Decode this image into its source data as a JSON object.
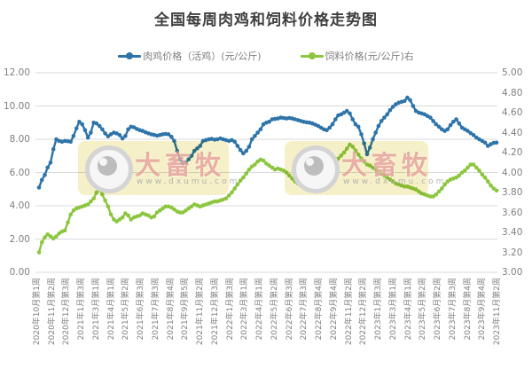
{
  "title": "全国每周肉鸡和饲料价格走势图",
  "legend": [
    {
      "label": "肉鸡价格（活鸡）(元/公斤)",
      "color": "#2e74a8"
    },
    {
      "label": "饲料价格(元/公斤)右",
      "color": "#8cc63f"
    }
  ],
  "watermark": {
    "brand": "大畜牧",
    "url": "www.dxumu.com"
  },
  "colors": {
    "broiler_line": "#2e74a8",
    "feed_line": "#8cc63f",
    "gridline": "#d9d9d9",
    "axis_text": "#7f7f7f",
    "title_text": "#404040",
    "watermark_bg": "#f5efc3"
  },
  "chart_data": {
    "type": "line",
    "title": "全国每周肉鸡和饲料价格走势图",
    "grid": true,
    "legend_position": "top",
    "left_axis": {
      "range": [
        0,
        12
      ],
      "ticks": [
        "12.00",
        "10.00",
        "8.00",
        "6.00",
        "4.00",
        "2.00",
        "0.00"
      ]
    },
    "right_axis": {
      "range": [
        3,
        5
      ],
      "ticks": [
        "5.00",
        "4.80",
        "4.60",
        "4.40",
        "4.20",
        "4.00",
        "3.80",
        "3.60",
        "3.40",
        "3.20",
        "3.00"
      ]
    },
    "x_tick_labels": [
      "2020年10月第1周",
      "2020年11月第2周",
      "2020年12月第3周",
      "2021年1月第3周",
      "2021年3月第1周",
      "2021年4月第1周",
      "2021年5月第2周",
      "2021年6月第3周",
      "2021年7月第3周",
      "2021年8月第4周",
      "2021年9月第5周",
      "2021年11月第2周",
      "2021年12月第3周",
      "2022年1月第3周",
      "2022年3月第1周",
      "2022年4月第1周",
      "2022年5月第2周",
      "2022年6月第3周",
      "2022年7月第3周",
      "2022年8月第4周",
      "2022年9月第4周",
      "2022年11月第2周",
      "2022年12月第2周",
      "2023年1月第3周",
      "2023年3月第1周",
      "2023年4月第1周",
      "2023年5月第2周",
      "2023年6月第2周",
      "2023年7月第3周",
      "2023年8月第4周",
      "2023年9月第4周",
      "2023年11月第2周"
    ],
    "series": [
      {
        "name": "肉鸡价格（活鸡）(元/公斤)",
        "axis": "left",
        "color": "#2e74a8",
        "values": [
          5.1,
          5.55,
          5.85,
          6.3,
          6.6,
          7.4,
          8.0,
          7.9,
          7.85,
          7.9,
          7.88,
          7.85,
          8.2,
          8.65,
          9.05,
          8.9,
          8.55,
          8.1,
          8.4,
          9.0,
          8.95,
          8.8,
          8.6,
          8.35,
          8.18,
          8.3,
          8.4,
          8.35,
          8.25,
          8.05,
          8.2,
          8.6,
          8.75,
          8.72,
          8.62,
          8.55,
          8.5,
          8.42,
          8.36,
          8.3,
          8.26,
          8.22,
          8.25,
          8.3,
          8.32,
          8.3,
          8.15,
          7.9,
          7.3,
          6.8,
          6.55,
          6.6,
          6.8,
          7.0,
          7.3,
          7.45,
          7.6,
          7.9,
          7.95,
          8.0,
          8.02,
          7.98,
          8.0,
          8.05,
          8.0,
          7.95,
          7.9,
          7.95,
          7.85,
          7.6,
          7.35,
          7.15,
          7.3,
          7.55,
          8.0,
          8.2,
          8.4,
          8.6,
          8.9,
          9.0,
          9.05,
          9.2,
          9.22,
          9.25,
          9.3,
          9.28,
          9.25,
          9.28,
          9.25,
          9.2,
          9.15,
          9.1,
          9.05,
          9.02,
          9.0,
          8.95,
          8.88,
          8.8,
          8.7,
          8.6,
          8.55,
          8.7,
          8.9,
          9.2,
          9.44,
          9.5,
          9.6,
          9.7,
          9.55,
          9.2,
          8.9,
          8.75,
          8.3,
          7.75,
          7.1,
          7.5,
          8.0,
          8.4,
          8.8,
          9.1,
          9.3,
          9.5,
          9.75,
          9.95,
          10.1,
          10.2,
          10.25,
          10.3,
          10.5,
          10.35,
          10.0,
          9.7,
          9.6,
          9.55,
          9.5,
          9.4,
          9.3,
          9.1,
          8.9,
          8.75,
          8.6,
          8.5,
          8.6,
          8.85,
          9.05,
          9.2,
          8.95,
          8.7,
          8.6,
          8.5,
          8.37,
          8.25,
          8.1,
          8.0,
          7.9,
          7.8,
          7.6,
          7.7,
          7.78,
          7.8
        ]
      },
      {
        "name": "饲料价格(元/公斤)右",
        "axis": "right",
        "color": "#8cc63f",
        "values": [
          3.2,
          3.3,
          3.35,
          3.38,
          3.36,
          3.34,
          3.36,
          3.39,
          3.41,
          3.42,
          3.5,
          3.58,
          3.62,
          3.64,
          3.65,
          3.66,
          3.67,
          3.68,
          3.71,
          3.74,
          3.8,
          3.83,
          3.78,
          3.72,
          3.66,
          3.58,
          3.53,
          3.51,
          3.53,
          3.55,
          3.59,
          3.57,
          3.53,
          3.55,
          3.56,
          3.57,
          3.59,
          3.58,
          3.57,
          3.55,
          3.56,
          3.6,
          3.62,
          3.64,
          3.66,
          3.66,
          3.65,
          3.63,
          3.61,
          3.6,
          3.6,
          3.62,
          3.64,
          3.66,
          3.68,
          3.67,
          3.66,
          3.67,
          3.68,
          3.69,
          3.7,
          3.71,
          3.71,
          3.72,
          3.73,
          3.74,
          3.77,
          3.8,
          3.84,
          3.88,
          3.92,
          3.95,
          3.99,
          4.03,
          4.06,
          4.08,
          4.11,
          4.13,
          4.12,
          4.09,
          4.07,
          4.05,
          4.03,
          4.04,
          4.03,
          4.02,
          4.0,
          3.97,
          3.94,
          3.91,
          3.89,
          3.88,
          3.89,
          3.88,
          3.87,
          3.86,
          3.87,
          3.88,
          3.9,
          3.94,
          3.98,
          4.02,
          4.06,
          4.1,
          4.14,
          4.17,
          4.2,
          4.24,
          4.28,
          4.26,
          4.22,
          4.18,
          4.14,
          4.11,
          4.08,
          4.07,
          4.05,
          4.03,
          4.01,
          3.99,
          3.97,
          3.95,
          3.93,
          3.91,
          3.89,
          3.88,
          3.87,
          3.86,
          3.86,
          3.85,
          3.84,
          3.83,
          3.81,
          3.79,
          3.78,
          3.77,
          3.76,
          3.76,
          3.78,
          3.81,
          3.84,
          3.88,
          3.91,
          3.93,
          3.94,
          3.95,
          3.97,
          4.0,
          4.02,
          4.05,
          4.08,
          4.08,
          4.05,
          4.02,
          3.98,
          3.95,
          3.91,
          3.87,
          3.84,
          3.82
        ]
      }
    ]
  }
}
